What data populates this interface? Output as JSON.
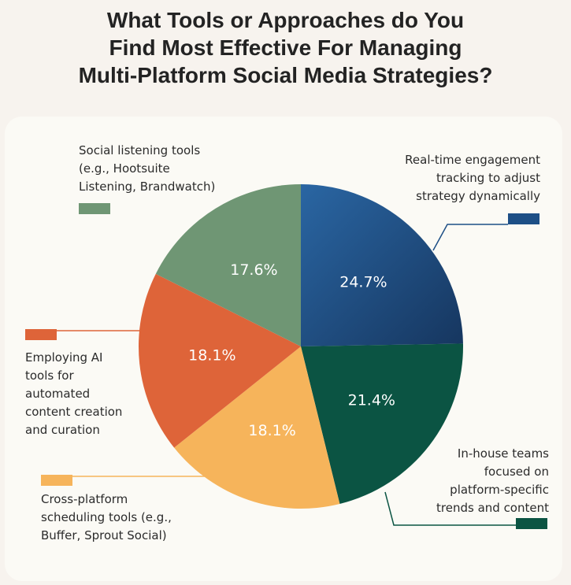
{
  "chart_data": {
    "type": "pie",
    "title": "What Tools or Approaches do You\nFind Most Effective For Managing\nMulti-Platform Social Media Strategies?",
    "categories": [
      "Real-time engagement\ntracking to adjust\nstrategy dynamically",
      "In-house teams\nfocused on\nplatform-specific\ntrends and content",
      "Cross-platform\nscheduling tools (e.g.,\nBuffer, Sprout Social)",
      "Employing AI\ntools for\nautomated\ncontent creation\nand curation",
      "Social listening tools\n(e.g., Hootsuite\nListening, Brandwatch)"
    ],
    "values": [
      24.7,
      21.4,
      18.1,
      18.1,
      17.6
    ],
    "value_labels": [
      "24.7%",
      "21.4%",
      "18.1%",
      "18.1%",
      "17.6%"
    ],
    "colors": [
      "#1d4f86",
      "#0b5443",
      "#f6b45b",
      "#de6439",
      "#6f9674"
    ]
  }
}
